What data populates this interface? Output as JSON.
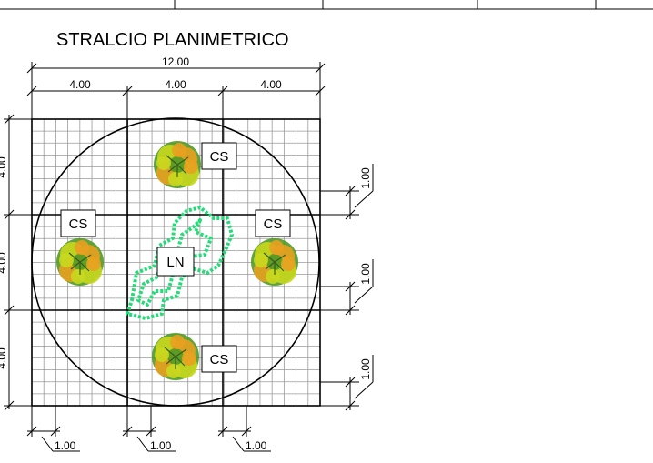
{
  "title": "STRALCIO PLANIMETRICO",
  "dimensions": {
    "overall": "12.00",
    "top_segments": [
      "4.00",
      "4.00",
      "4.00"
    ],
    "left_segments": [
      "4.00",
      "4.00",
      "4.00"
    ],
    "right_offsets": [
      "1.00",
      "1.00",
      "1.00"
    ],
    "bottom_offsets": [
      "1.00",
      "1.00",
      "1.00"
    ]
  },
  "labels": {
    "tree_label": "CS",
    "center_label": "LN"
  },
  "colors": {
    "line": "#000000",
    "grid": "#9a9a9a",
    "shrub": "#22dd77",
    "tree_light": "#c8d81e",
    "tree_mid": "#e8a020",
    "tree_dark": "#4f9a26"
  }
}
